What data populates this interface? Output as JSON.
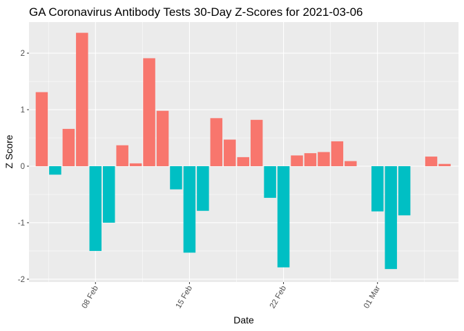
{
  "chart_data": {
    "type": "bar",
    "title": "GA Coronavirus Antibody Tests 30-Day Z-Scores for 2021-03-06",
    "xlabel": "Date",
    "ylabel": "Z Score",
    "x": [
      "2021-02-04",
      "2021-02-05",
      "2021-02-06",
      "2021-02-07",
      "2021-02-08",
      "2021-02-09",
      "2021-02-10",
      "2021-02-11",
      "2021-02-12",
      "2021-02-13",
      "2021-02-14",
      "2021-02-15",
      "2021-02-16",
      "2021-02-17",
      "2021-02-18",
      "2021-02-19",
      "2021-02-20",
      "2021-02-21",
      "2021-02-22",
      "2021-02-23",
      "2021-02-24",
      "2021-02-25",
      "2021-02-26",
      "2021-02-27",
      "2021-02-28",
      "2021-03-01",
      "2021-03-02",
      "2021-03-03",
      "2021-03-04",
      "2021-03-05",
      "2021-03-06"
    ],
    "values": [
      1.31,
      -0.15,
      0.66,
      2.36,
      -1.5,
      -1.0,
      0.37,
      0.05,
      1.91,
      0.98,
      -0.41,
      -1.53,
      -0.79,
      0.85,
      0.47,
      0.16,
      0.82,
      -0.56,
      -1.79,
      0.19,
      0.23,
      0.25,
      0.44,
      0.09,
      null,
      -0.8,
      -1.82,
      -0.87,
      null,
      0.17,
      0.04
    ],
    "x_ticks": [
      "08 Feb",
      "15 Feb",
      "22 Feb",
      "01 Mar"
    ],
    "y_ticks": [
      -2,
      -1,
      0,
      1,
      2
    ],
    "ylim": [
      -2.05,
      2.55
    ],
    "grid": true,
    "colors": {
      "positive": "#F8766D",
      "negative": "#00BFC4",
      "panel": "#EBEBEB",
      "grid": "#FFFFFF"
    }
  }
}
